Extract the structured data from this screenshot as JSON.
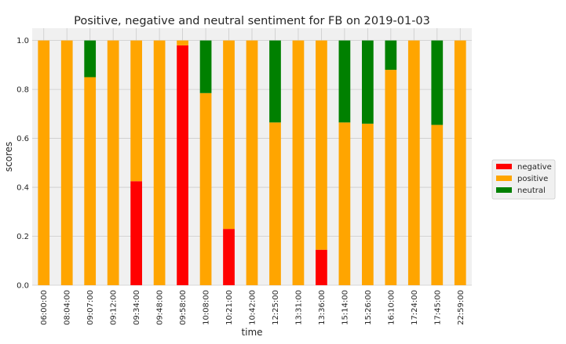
{
  "chart_data": {
    "type": "bar",
    "stacked": true,
    "title": "Positive, negative and neutral sentiment for FB on 2019-01-03",
    "xlabel": "time",
    "ylabel": "scores",
    "ylim": [
      0,
      1.05
    ],
    "yticks": [
      "0.0",
      "0.2",
      "0.4",
      "0.6",
      "0.8",
      "1.0"
    ],
    "grid": true,
    "legend_position": "right",
    "categories": [
      "06:00:00",
      "08:04:00",
      "09:07:00",
      "09:12:00",
      "09:34:00",
      "09:48:00",
      "09:58:00",
      "10:08:00",
      "10:21:00",
      "10:42:00",
      "12:25:00",
      "13:31:00",
      "13:36:00",
      "15:14:00",
      "15:26:00",
      "16:10:00",
      "17:24:00",
      "17:45:00",
      "22:59:00"
    ],
    "series": [
      {
        "name": "negative",
        "color": "#ff0000",
        "values": [
          0,
          0,
          0,
          0,
          0.425,
          0,
          0.98,
          0,
          0.23,
          0,
          0,
          0,
          0.145,
          0,
          0,
          0,
          0,
          0,
          0
        ]
      },
      {
        "name": "positive",
        "color": "#ffa500",
        "values": [
          1.0,
          1.0,
          0.85,
          1.0,
          0.575,
          1.0,
          0.02,
          0.785,
          0.77,
          1.0,
          0.665,
          1.0,
          0.855,
          0.665,
          0.66,
          0.88,
          1.0,
          0.655,
          1.0
        ]
      },
      {
        "name": "neutral",
        "color": "#008000",
        "values": [
          0,
          0,
          0.15,
          0,
          0,
          0,
          0,
          0.215,
          0,
          0,
          0.335,
          0,
          0,
          0.335,
          0.34,
          0.12,
          0,
          0.345,
          0
        ]
      }
    ]
  }
}
